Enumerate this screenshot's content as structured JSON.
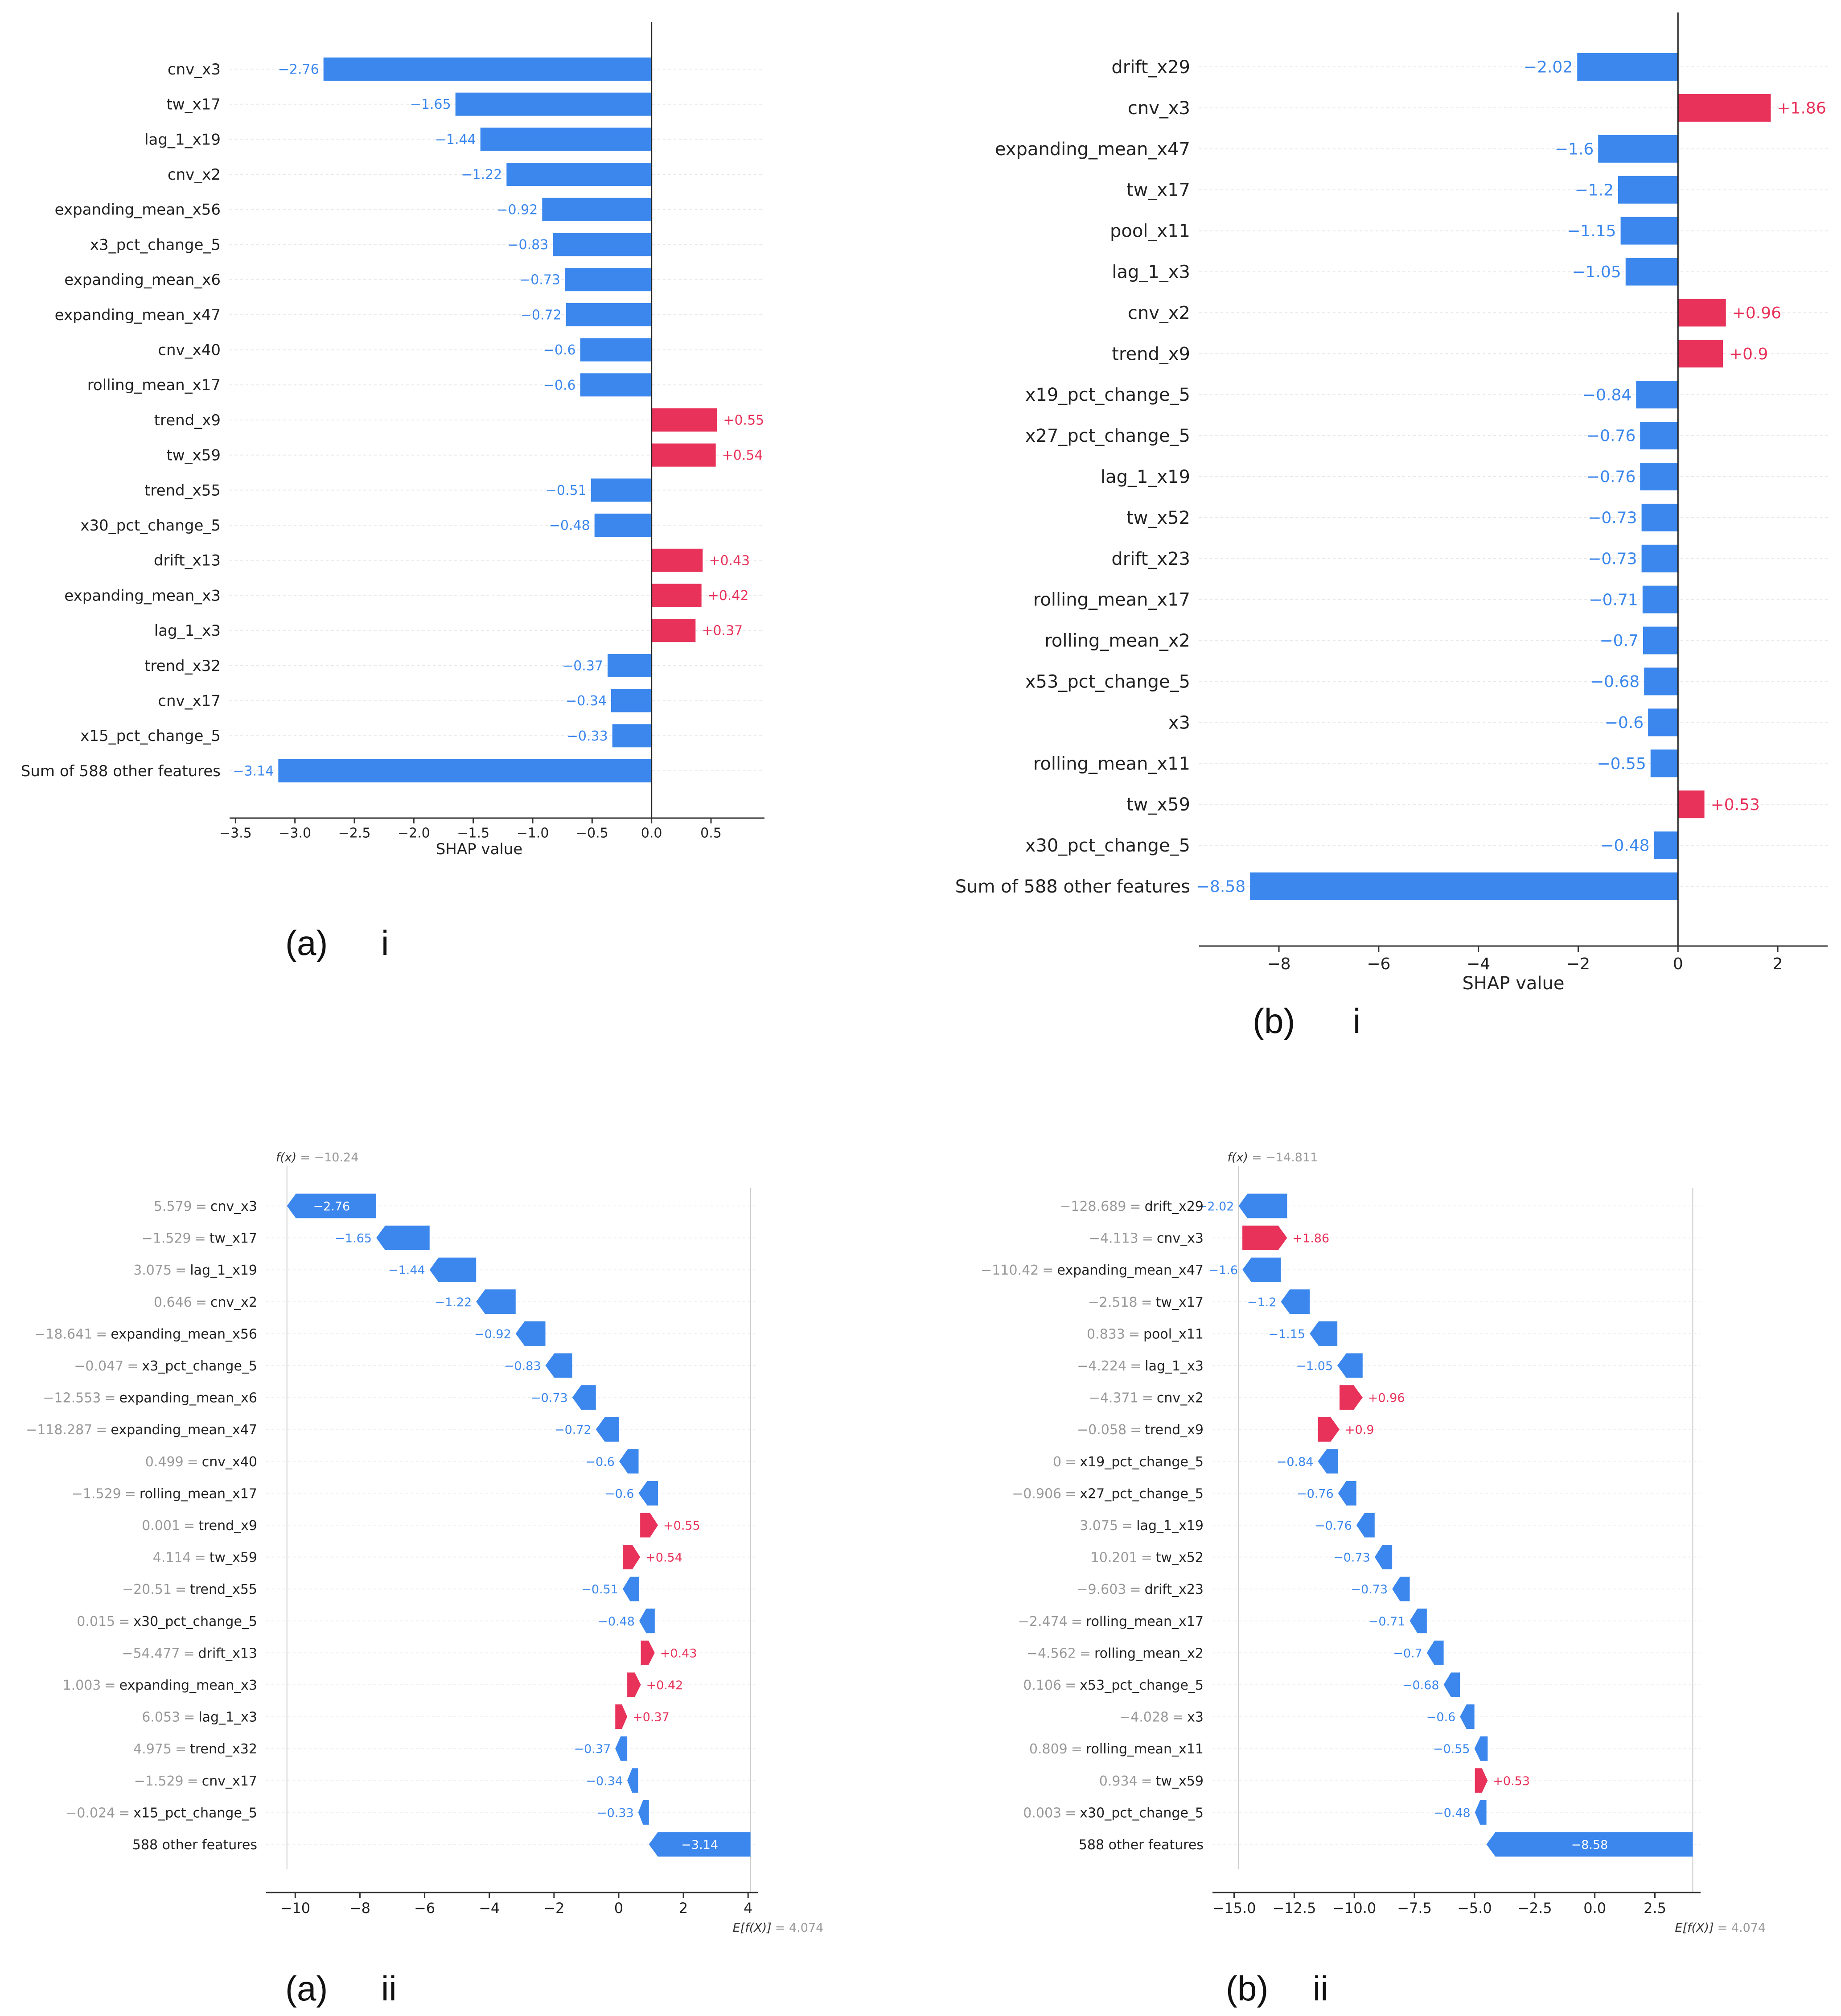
{
  "colors": {
    "negative": "#3b87ee",
    "positive": "#e8325a",
    "axis": "#333333",
    "grey_text": "#999999",
    "grid": "#e8e8e8"
  },
  "chart_data": [
    {
      "id": "a-i",
      "type": "bar",
      "xlabel": "SHAP value",
      "xlim": [
        -3.55,
        0.95
      ],
      "xticks": [
        -3.5,
        -3.0,
        -2.5,
        -2.0,
        -1.5,
        -1.0,
        -0.5,
        0.0,
        0.5
      ],
      "xtick_labels": [
        "−3.5",
        "−3.0",
        "−2.5",
        "−2.0",
        "−1.5",
        "−1.0",
        "−0.5",
        "0.0",
        "0.5"
      ],
      "categories": [
        "cnv_x3",
        "tw_x17",
        "lag_1_x19",
        "cnv_x2",
        "expanding_mean_x56",
        "x3_pct_change_5",
        "expanding_mean_x6",
        "expanding_mean_x47",
        "cnv_x40",
        "rolling_mean_x17",
        "trend_x9",
        "tw_x59",
        "trend_x55",
        "x30_pct_change_5",
        "drift_x13",
        "expanding_mean_x3",
        "lag_1_x3",
        "trend_x32",
        "cnv_x17",
        "x15_pct_change_5",
        "Sum of 588 other features"
      ],
      "values": [
        -2.76,
        -1.65,
        -1.44,
        -1.22,
        -0.92,
        -0.83,
        -0.73,
        -0.72,
        -0.6,
        -0.6,
        0.55,
        0.54,
        -0.51,
        -0.48,
        0.43,
        0.42,
        0.37,
        -0.37,
        -0.34,
        -0.33,
        -3.14
      ],
      "value_labels": [
        "−2.76",
        "−1.65",
        "−1.44",
        "−1.22",
        "−0.92",
        "−0.83",
        "−0.73",
        "−0.72",
        "−0.6",
        "−0.6",
        "+0.55",
        "+0.54",
        "−0.51",
        "−0.48",
        "+0.43",
        "+0.42",
        "+0.37",
        "−0.37",
        "−0.34",
        "−0.33",
        "−3.14"
      ]
    },
    {
      "id": "b-i",
      "type": "bar",
      "xlabel": "SHAP value",
      "xlim": [
        -9.6,
        3.0
      ],
      "xticks": [
        -8,
        -6,
        -4,
        -2,
        0,
        2
      ],
      "xtick_labels": [
        "−8",
        "−6",
        "−4",
        "−2",
        "0",
        "2"
      ],
      "categories": [
        "drift_x29",
        "cnv_x3",
        "expanding_mean_x47",
        "tw_x17",
        "pool_x11",
        "lag_1_x3",
        "cnv_x2",
        "trend_x9",
        "x19_pct_change_5",
        "x27_pct_change_5",
        "lag_1_x19",
        "tw_x52",
        "drift_x23",
        "rolling_mean_x17",
        "rolling_mean_x2",
        "x53_pct_change_5",
        "x3",
        "rolling_mean_x11",
        "tw_x59",
        "x30_pct_change_5",
        "Sum of 588 other features"
      ],
      "values": [
        -2.02,
        1.86,
        -1.6,
        -1.2,
        -1.15,
        -1.05,
        0.96,
        0.9,
        -0.84,
        -0.76,
        -0.76,
        -0.73,
        -0.73,
        -0.71,
        -0.7,
        -0.68,
        -0.6,
        -0.55,
        0.53,
        -0.48,
        -8.58
      ],
      "value_labels": [
        "−2.02",
        "+1.86",
        "−1.6",
        "−1.2",
        "−1.15",
        "−1.05",
        "+0.96",
        "+0.9",
        "−0.84",
        "−0.76",
        "−0.76",
        "−0.73",
        "−0.73",
        "−0.71",
        "−0.7",
        "−0.68",
        "−0.6",
        "−0.55",
        "+0.53",
        "−0.48",
        "−8.58"
      ]
    },
    {
      "id": "a-ii",
      "type": "waterfall",
      "fx_label": "f(x)",
      "fx_value": "= −10.24",
      "base_label": "E[f(X)]",
      "base_value_text": "= 4.074",
      "base_value": 4.074,
      "xlim": [
        -10.9,
        4.3
      ],
      "xticks": [
        -10,
        -8,
        -6,
        -4,
        -2,
        0,
        2,
        4
      ],
      "xtick_labels": [
        "−10",
        "−8",
        "−6",
        "−4",
        "−2",
        "0",
        "2",
        "4"
      ],
      "feature_values": [
        "5.579",
        "−1.529",
        "3.075",
        "0.646",
        "−18.641",
        "−0.047",
        "−12.553",
        "−118.287",
        "0.499",
        "−1.529",
        "0.001",
        "4.114",
        "−20.51",
        "0.015",
        "−54.477",
        "1.003",
        "6.053",
        "4.975",
        "−1.529",
        "−0.024",
        ""
      ],
      "categories": [
        "cnv_x3",
        "tw_x17",
        "lag_1_x19",
        "cnv_x2",
        "expanding_mean_x56",
        "x3_pct_change_5",
        "expanding_mean_x6",
        "expanding_mean_x47",
        "cnv_x40",
        "rolling_mean_x17",
        "trend_x9",
        "tw_x59",
        "trend_x55",
        "x30_pct_change_5",
        "drift_x13",
        "expanding_mean_x3",
        "lag_1_x3",
        "trend_x32",
        "cnv_x17",
        "x15_pct_change_5",
        "588 other features"
      ],
      "values": [
        -2.76,
        -1.65,
        -1.44,
        -1.22,
        -0.92,
        -0.83,
        -0.73,
        -0.72,
        -0.6,
        -0.6,
        0.55,
        0.54,
        -0.51,
        -0.48,
        0.43,
        0.42,
        0.37,
        -0.37,
        -0.34,
        -0.33,
        -3.14
      ],
      "value_labels": [
        "−2.76",
        "−1.65",
        "−1.44",
        "−1.22",
        "−0.92",
        "−0.83",
        "−0.73",
        "−0.72",
        "−0.6",
        "−0.6",
        "+0.55",
        "+0.54",
        "−0.51",
        "−0.48",
        "+0.43",
        "+0.42",
        "+0.37",
        "−0.37",
        "−0.34",
        "−0.33",
        "−3.14"
      ]
    },
    {
      "id": "b-ii",
      "type": "waterfall",
      "fx_label": "f(x)",
      "fx_value": "= −14.811",
      "base_label": "E[f(X)]",
      "base_value_text": "= 4.074",
      "base_value": 4.074,
      "xlim": [
        -15.9,
        4.4
      ],
      "xticks": [
        -15.0,
        -12.5,
        -10.0,
        -7.5,
        -5.0,
        -2.5,
        0.0,
        2.5
      ],
      "xtick_labels": [
        "−15.0",
        "−12.5",
        "−10.0",
        "−7.5",
        "−5.0",
        "−2.5",
        "0.0",
        "2.5"
      ],
      "feature_values": [
        "−128.689",
        "−4.113",
        "−110.42",
        "−2.518",
        "0.833",
        "−4.224",
        "−4.371",
        "−0.058",
        "0",
        "−0.906",
        "3.075",
        "10.201",
        "−9.603",
        "−2.474",
        "−4.562",
        "0.106",
        "−4.028",
        "0.809",
        "0.934",
        "0.003",
        ""
      ],
      "categories": [
        "drift_x29",
        "cnv_x3",
        "expanding_mean_x47",
        "tw_x17",
        "pool_x11",
        "lag_1_x3",
        "cnv_x2",
        "trend_x9",
        "x19_pct_change_5",
        "x27_pct_change_5",
        "lag_1_x19",
        "tw_x52",
        "drift_x23",
        "rolling_mean_x17",
        "rolling_mean_x2",
        "x53_pct_change_5",
        "x3",
        "rolling_mean_x11",
        "tw_x59",
        "x30_pct_change_5",
        "588 other features"
      ],
      "values": [
        -2.02,
        1.86,
        -1.6,
        -1.2,
        -1.15,
        -1.05,
        0.96,
        0.9,
        -0.84,
        -0.76,
        -0.76,
        -0.73,
        -0.73,
        -0.71,
        -0.7,
        -0.68,
        -0.6,
        -0.55,
        0.53,
        -0.48,
        -8.58
      ],
      "value_labels": [
        "−2.02",
        "+1.86",
        "−1.6",
        "−1.2",
        "−1.15",
        "−1.05",
        "+0.96",
        "+0.9",
        "−0.84",
        "−0.76",
        "−0.76",
        "−0.73",
        "−0.73",
        "−0.71",
        "−0.7",
        "−0.68",
        "−0.6",
        "−0.55",
        "+0.53",
        "−0.48",
        "−8.58"
      ]
    }
  ],
  "captions": [
    {
      "letter": "(a)",
      "roman": "i"
    },
    {
      "letter": "(b)",
      "roman": "i"
    },
    {
      "letter": "(a)",
      "roman": "ii"
    },
    {
      "letter": "(b)",
      "roman": "ii"
    }
  ]
}
